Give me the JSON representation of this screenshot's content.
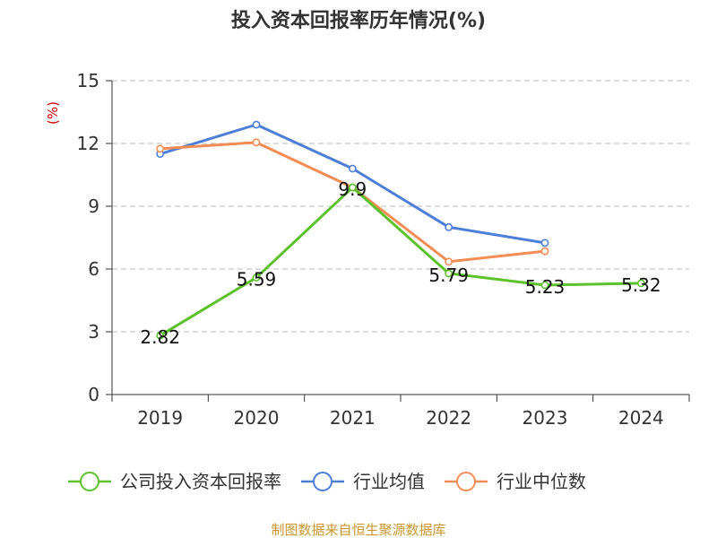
{
  "chart_data": {
    "type": "line",
    "title": "投入资本回报率历年情况(%)",
    "y_unit": "(%)",
    "categories": [
      "2019",
      "2020",
      "2021",
      "2022",
      "2023",
      "2024"
    ],
    "ylim": [
      0,
      15
    ],
    "yticks": [
      "0",
      "3",
      "6",
      "9",
      "12",
      "15"
    ],
    "grid": true,
    "legend_position": "bottom",
    "series": [
      {
        "name": "公司投入资本回报率",
        "color": "#5cc12b",
        "values": [
          2.82,
          5.59,
          9.9,
          5.79,
          5.23,
          5.32
        ],
        "labels": [
          "2.82",
          "5.59",
          "9.9",
          "5.79",
          "5.23",
          "5.32"
        ]
      },
      {
        "name": "行业均值",
        "color": "#4e7fd8",
        "values": [
          11.5,
          12.9,
          10.8,
          8.0,
          7.25,
          null
        ]
      },
      {
        "name": "行业中位数",
        "color": "#f48c55",
        "values": [
          11.75,
          12.05,
          9.9,
          6.35,
          6.85,
          null
        ]
      }
    ],
    "source": "制图数据来自恒生聚源数据库"
  }
}
